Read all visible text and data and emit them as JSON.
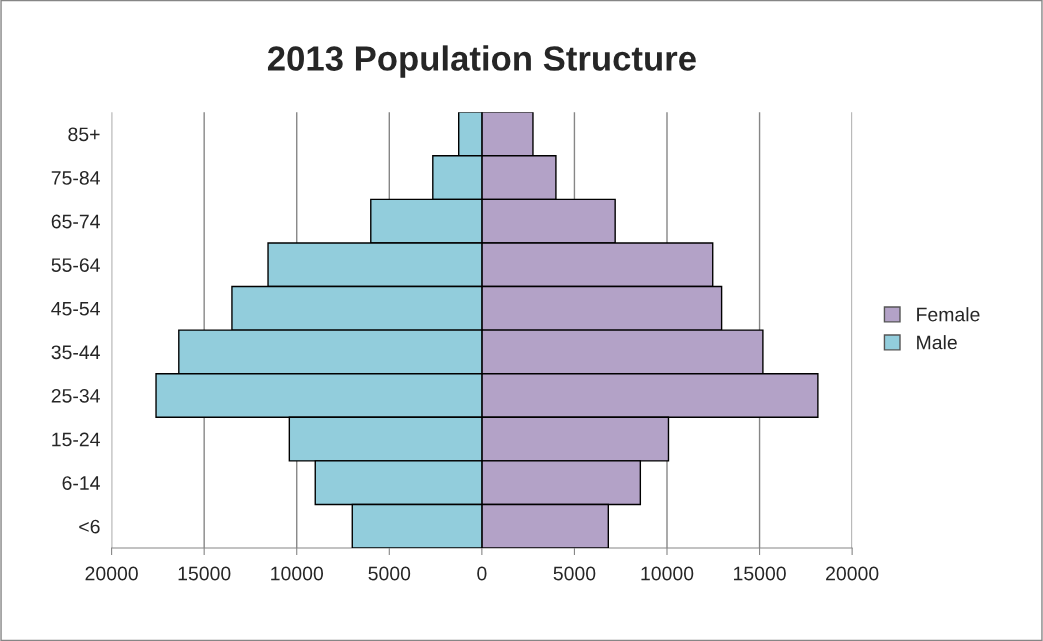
{
  "chart_data": {
    "type": "bar",
    "orientation": "horizontal",
    "title": "2013 Population Structure",
    "categories": [
      "85+",
      "75-84",
      "65-74",
      "55-64",
      "45-54",
      "35-44",
      "25-34",
      "15-24",
      "6-14",
      "<6"
    ],
    "series": [
      {
        "name": "Female",
        "color": "#b3a2c7",
        "values": [
          2760,
          4000,
          7200,
          12470,
          12950,
          15180,
          18150,
          10080,
          8560,
          6830
        ]
      },
      {
        "name": "Male",
        "color": "#92cddc",
        "values": [
          -1250,
          -2650,
          -6000,
          -11550,
          -13500,
          -16370,
          -17600,
          -10400,
          -9000,
          -7000
        ]
      }
    ],
    "xlim": [
      -20000,
      20000
    ],
    "xticks": [
      {
        "value": -20000,
        "label": "20000"
      },
      {
        "value": -15000,
        "label": "15000"
      },
      {
        "value": -10000,
        "label": "10000"
      },
      {
        "value": -5000,
        "label": "5000"
      },
      0,
      5000,
      10000,
      15000,
      20000
    ],
    "grid": "x",
    "legend": "right",
    "stacked": true
  }
}
